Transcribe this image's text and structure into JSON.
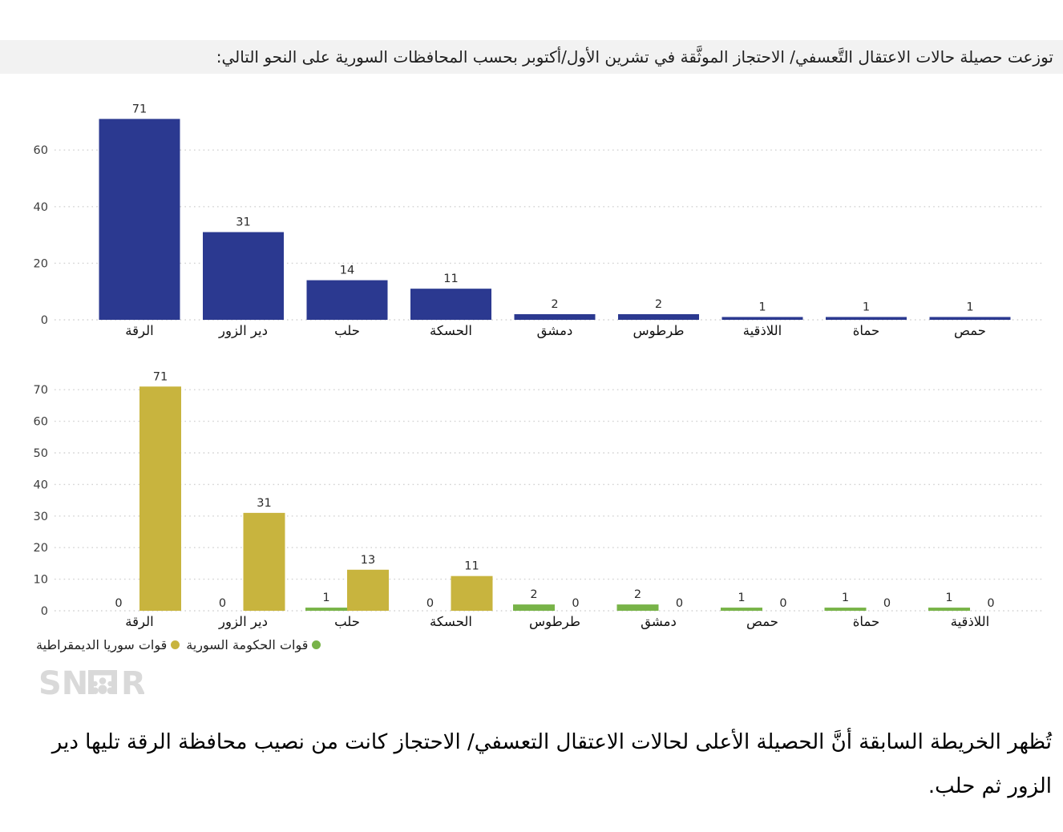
{
  "page": {
    "title": "توزعت حصيلة حالات الاعتقال التَّعسفي/ الاحتجاز الموثَّقة في تشرين الأول/أكتوبر بحسب المحافظات السورية على النحو التالي:",
    "caption": "تُظهر الخريطة السابقة أنَّ الحصيلة الأعلى لحالات الاعتقال التعسفي/ الاحتجاز كانت من نصيب محافظة الرقة تليها دير الزور ثم حلب.",
    "logo_text": "SNHR"
  },
  "colors": {
    "navy": "#2b3990",
    "government_green": "#78b348",
    "sdf_yellow": "#c8b43e",
    "grid": "#d2d2d2",
    "title_strip_bg": "#f2f2f2",
    "logo_gray": "#d9d9d9",
    "tick_text": "#3d3d3d",
    "value_text": "#2b2b2b",
    "category_text": "#111111"
  },
  "chart_data": [
    {
      "type": "bar",
      "title": "",
      "categories": [
        "الرقة",
        "دير الزور",
        "حلب",
        "الحسكة",
        "دمشق",
        "طرطوس",
        "اللاذقية",
        "حماة",
        "حمص"
      ],
      "values": [
        71,
        31,
        14,
        11,
        2,
        2,
        1,
        1,
        1
      ],
      "bar_color": "#2b3990",
      "yticks": [
        0,
        20,
        40,
        60
      ],
      "ylim": [
        0,
        75
      ],
      "grid": "dotted-horizontal",
      "value_labels": true,
      "legend": "none"
    },
    {
      "type": "bar",
      "title": "",
      "categories": [
        "الرقة",
        "دير الزور",
        "حلب",
        "الحسكة",
        "طرطوس",
        "دمشق",
        "حمص",
        "حماة",
        "اللاذقية"
      ],
      "series": [
        {
          "name": "قوات الحكومة السورية",
          "color": "#78b348",
          "values": [
            0,
            0,
            1,
            0,
            2,
            2,
            1,
            1,
            1
          ]
        },
        {
          "name": "قوات سوريا الديمقراطية",
          "color": "#c8b43e",
          "values": [
            71,
            31,
            13,
            11,
            0,
            0,
            0,
            0,
            0
          ]
        }
      ],
      "yticks": [
        0,
        10,
        20,
        30,
        40,
        50,
        60,
        70
      ],
      "ylim": [
        0,
        75
      ],
      "grid": "dotted-horizontal",
      "value_labels": true,
      "legend_position": "bottom-left"
    }
  ]
}
